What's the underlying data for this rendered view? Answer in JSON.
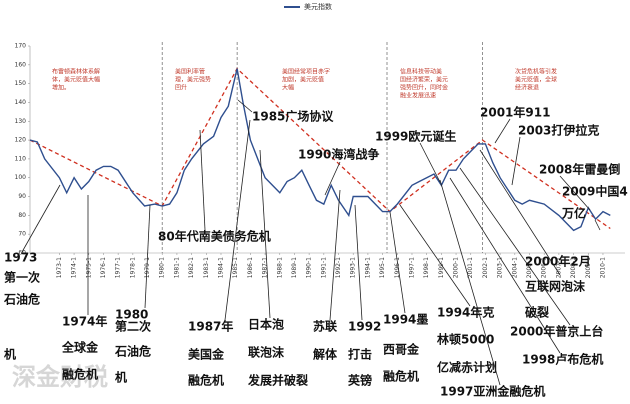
{
  "chart_data": {
    "type": "line",
    "watermark": "深金财税",
    "ylim": [
      60,
      170
    ],
    "yticks": [
      60,
      70,
      80,
      90,
      100,
      110,
      120,
      130,
      140,
      150,
      160,
      170
    ],
    "xlim": [
      1971,
      2011.5
    ],
    "xticks": [
      {
        "value": 1973,
        "label": "1973-1"
      },
      {
        "value": 1974,
        "label": "1974-1"
      },
      {
        "value": 1975,
        "label": "1975-1"
      },
      {
        "value": 1976,
        "label": "1976-1"
      },
      {
        "value": 1977,
        "label": "1977-1"
      },
      {
        "value": 1978,
        "label": "1978-1"
      },
      {
        "value": 1979,
        "label": "1979-1"
      },
      {
        "value": 1980,
        "label": "1980-1"
      },
      {
        "value": 1981,
        "label": "1981-1"
      },
      {
        "value": 1982,
        "label": "1982-1"
      },
      {
        "value": 1983,
        "label": "1983-1"
      },
      {
        "value": 1984,
        "label": "1984-1"
      },
      {
        "value": 1985,
        "label": "1985-1"
      },
      {
        "value": 1986,
        "label": "1986-1"
      },
      {
        "value": 1987,
        "label": "1987-1"
      },
      {
        "value": 1988,
        "label": "1988-1"
      },
      {
        "value": 1989,
        "label": "1989-1"
      },
      {
        "value": 1990,
        "label": "1990-1"
      },
      {
        "value": 1991,
        "label": "1991-1"
      },
      {
        "value": 1992,
        "label": "1992-1"
      },
      {
        "value": 1993,
        "label": "1993-1"
      },
      {
        "value": 1994,
        "label": "1994-1"
      },
      {
        "value": 1995,
        "label": "1995-1"
      },
      {
        "value": 1996,
        "label": "1996-1"
      },
      {
        "value": 1997,
        "label": "1997-1"
      },
      {
        "value": 1998,
        "label": "1998-1"
      },
      {
        "value": 1999,
        "label": "1999-1"
      },
      {
        "value": 2000,
        "label": "2000-1"
      },
      {
        "value": 2001,
        "label": "2001-1"
      },
      {
        "value": 2002,
        "label": "2002-1"
      },
      {
        "value": 2003,
        "label": "2003-1"
      },
      {
        "value": 2004,
        "label": "2004-1"
      },
      {
        "value": 2005,
        "label": "2005-1"
      },
      {
        "value": 2006,
        "label": "2006-1"
      },
      {
        "value": 2007,
        "label": "2007-1"
      },
      {
        "value": 2008,
        "label": "2008-1"
      },
      {
        "value": 2009,
        "label": "2009-1"
      },
      {
        "value": 2010,
        "label": "2010-1"
      }
    ],
    "x": [
      1971,
      1971.5,
      1972,
      1973,
      1973.5,
      1974,
      1974.5,
      1975,
      1975.5,
      1976,
      1976.5,
      1977,
      1978,
      1978.8,
      1979.5,
      1980,
      1980.5,
      1981,
      1981.5,
      1982,
      1982.8,
      1983.5,
      1984,
      1984.5,
      1985.1,
      1985.5,
      1986,
      1986.5,
      1987,
      1988,
      1988.5,
      1989,
      1989.5,
      1990,
      1990.5,
      1991,
      1991.5,
      1992,
      1992.7,
      1993,
      1994,
      1995,
      1995.5,
      1996,
      1997,
      1997.5,
      1998,
      1998.5,
      1999,
      1999.5,
      2000,
      2000.5,
      2001,
      2001.5,
      2002,
      2002.5,
      2003,
      2004,
      2004.5,
      2005,
      2006,
      2007,
      2008,
      2008.5,
      2009,
      2009.5,
      2010,
      2010.5
    ],
    "series": [
      {
        "name": "美元指数",
        "color": "#2f4f8f",
        "values": [
          120,
          119,
          110,
          100,
          92,
          100,
          94,
          98,
          104,
          106,
          106,
          104,
          92,
          85,
          86,
          85,
          86,
          92,
          104,
          110,
          118,
          122,
          132,
          138,
          158,
          140,
          120,
          110,
          100,
          92,
          98,
          100,
          104,
          96,
          88,
          86,
          96,
          88,
          80,
          90,
          90,
          82,
          82,
          86,
          96,
          98,
          100,
          102,
          96,
          104,
          104,
          110,
          114,
          118,
          118,
          108,
          100,
          88,
          86,
          88,
          86,
          80,
          72,
          74,
          84,
          78,
          82,
          80
        ]
      }
    ],
    "trend": {
      "color": "#d03020",
      "x": [
        1971,
        1980,
        1985.1,
        1995.5,
        2001.8,
        2010.5
      ],
      "values": [
        120,
        85,
        158,
        82,
        120,
        73
      ]
    },
    "dividers": [
      1980,
      1985.1,
      1995.3,
      2001.8
    ],
    "notes": [
      {
        "lines": [
          "布雷顿森林体系解",
          "体，美元贬值大幅",
          "增加。"
        ]
      },
      {
        "lines": [
          "美国利率管",
          "理，美元强势",
          "回升"
        ]
      },
      {
        "lines": [
          "美国经常项目赤字",
          "加剧，美元贬值",
          "大幅"
        ]
      },
      {
        "lines": [
          "信息科技带动美",
          "国经济繁荣，美元",
          "强势回升，同时金",
          "融业发展迅速"
        ]
      },
      {
        "lines": [
          "次贷危机等引发",
          "美元贬值，全球",
          "经济衰退"
        ]
      }
    ],
    "annotations": [
      {
        "lines": [
          "1973",
          "第一次",
          "石油危",
          "机"
        ]
      },
      {
        "lines": [
          "1974年",
          "全球金",
          "融危机"
        ]
      },
      {
        "lines": [
          "1980",
          "第二次",
          "石油危",
          "机"
        ]
      },
      {
        "lines": [
          "80年代南美债务危机"
        ]
      },
      {
        "lines": [
          "1985广场协议"
        ]
      },
      {
        "lines": [
          "1987年",
          "美国金",
          "融危机"
        ]
      },
      {
        "lines": [
          "日本泡",
          "联泡沫",
          "发展并破裂"
        ]
      },
      {
        "lines": [
          "1990海湾战争"
        ]
      },
      {
        "lines": [
          "苏联",
          "解体"
        ]
      },
      {
        "lines": [
          "1992",
          "打击",
          "英镑"
        ]
      },
      {
        "lines": [
          "1994墨",
          "西哥金",
          "融危机"
        ]
      },
      {
        "lines": [
          "1994年克",
          "林顿5000",
          "亿减赤计划"
        ]
      },
      {
        "lines": [
          "1997亚洲金融危机"
        ]
      },
      {
        "lines": [
          "1998卢布危机"
        ]
      },
      {
        "lines": [
          "2000年普京上台"
        ]
      },
      {
        "lines": [
          "2000年2月",
          "互联网泡沫",
          "破裂"
        ]
      },
      {
        "lines": [
          "1999欧元诞生"
        ]
      },
      {
        "lines": [
          "2001年911"
        ]
      },
      {
        "lines": [
          "2003打伊拉克"
        ]
      },
      {
        "lines": [
          "2008年雷曼倒"
        ]
      },
      {
        "lines": [
          "2009中国4",
          "万亿"
        ]
      }
    ]
  }
}
